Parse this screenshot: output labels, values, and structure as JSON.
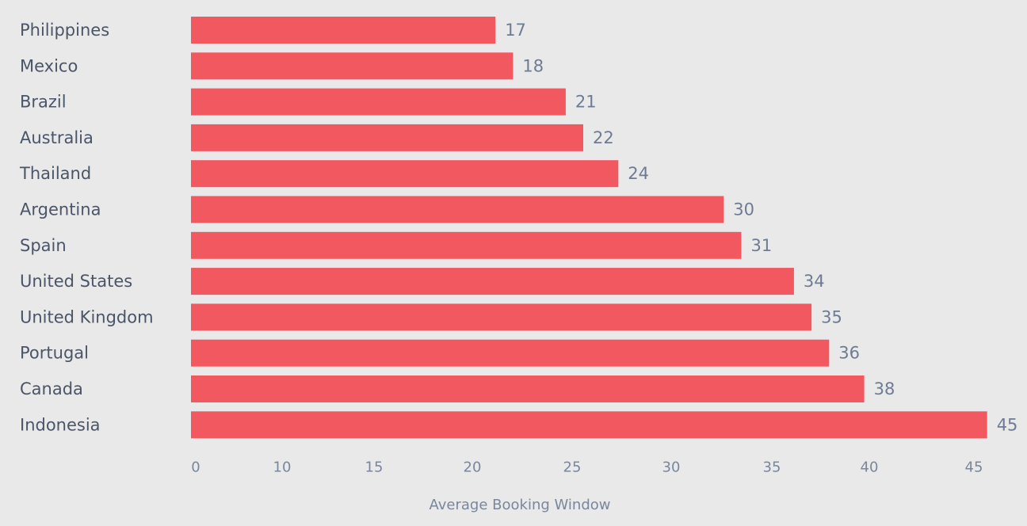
{
  "colors": {
    "background": "#e9e9e9",
    "bar": "#f25860"
  },
  "chart_data": {
    "type": "bar",
    "orientation": "horizontal",
    "title": "",
    "xlabel": "Average Booking Window",
    "ylabel": "",
    "categories": [
      "Philippines",
      "Mexico",
      "Brazil",
      "Australia",
      "Thailand",
      "Argentina",
      "Spain",
      "United States",
      "United Kingdom",
      "Portugal",
      "Canada",
      "Indonesia"
    ],
    "values": [
      17,
      18,
      21,
      22,
      24,
      30,
      31,
      34,
      35,
      36,
      38,
      45
    ],
    "x_ticks": [
      "0",
      "10",
      "15",
      "20",
      "25",
      "30",
      "35",
      "40",
      "45"
    ],
    "grid": false,
    "legend": "none"
  }
}
